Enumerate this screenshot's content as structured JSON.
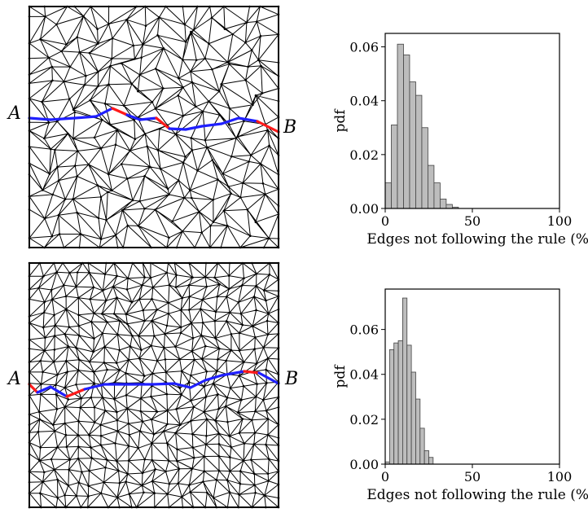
{
  "meshes": [
    {
      "start_label": "A",
      "end_label": "B",
      "style": "irregular",
      "colors": {
        "mesh": "#000000",
        "path_follow": "#1f1fff",
        "path_break": "#ff1a1a"
      }
    },
    {
      "start_label": "A",
      "end_label": "B",
      "style": "regular",
      "colors": {
        "mesh": "#000000",
        "path_follow": "#1f1fff",
        "path_break": "#ff1a1a"
      }
    }
  ],
  "chart_data": [
    {
      "type": "bar",
      "title": "",
      "xlabel": "Edges not following the rule (%)",
      "ylabel": "pdf",
      "xlim": [
        0,
        100
      ],
      "ylim": [
        0,
        0.065
      ],
      "xticks": [
        "0",
        "50",
        "100"
      ],
      "yticks": [
        "0.00",
        "0.02",
        "0.04",
        "0.06"
      ],
      "xtick_values": [
        0,
        50,
        100
      ],
      "ytick_values": [
        0.0,
        0.02,
        0.04,
        0.06
      ],
      "bin_width": 3.5,
      "bins_start": [
        0,
        3.5,
        7,
        10.5,
        14,
        17.5,
        21,
        24.5,
        28,
        31.5,
        35,
        38.5
      ],
      "values": [
        0.0095,
        0.031,
        0.061,
        0.057,
        0.047,
        0.042,
        0.03,
        0.016,
        0.0095,
        0.0035,
        0.0015,
        0.0005
      ],
      "colors": {
        "bar": "#bdbdbd",
        "edge": "#404040"
      }
    },
    {
      "type": "bar",
      "title": "",
      "xlabel": "Edges not following the rule (%)",
      "ylabel": "pdf",
      "xlim": [
        0,
        100
      ],
      "ylim": [
        0,
        0.078
      ],
      "xticks": [
        "0",
        "50",
        "100"
      ],
      "yticks": [
        "0.00",
        "0.02",
        "0.04",
        "0.06"
      ],
      "xtick_values": [
        0,
        50,
        100
      ],
      "ytick_values": [
        0.0,
        0.02,
        0.04,
        0.06
      ],
      "bin_width": 2.5,
      "bins_start": [
        0,
        2.5,
        5,
        7.5,
        10,
        12.5,
        15,
        17.5,
        20,
        22.5,
        25
      ],
      "values": [
        0.001,
        0.051,
        0.054,
        0.055,
        0.074,
        0.053,
        0.041,
        0.029,
        0.016,
        0.006,
        0.003
      ],
      "colors": {
        "bar": "#bdbdbd",
        "edge": "#404040"
      }
    }
  ]
}
